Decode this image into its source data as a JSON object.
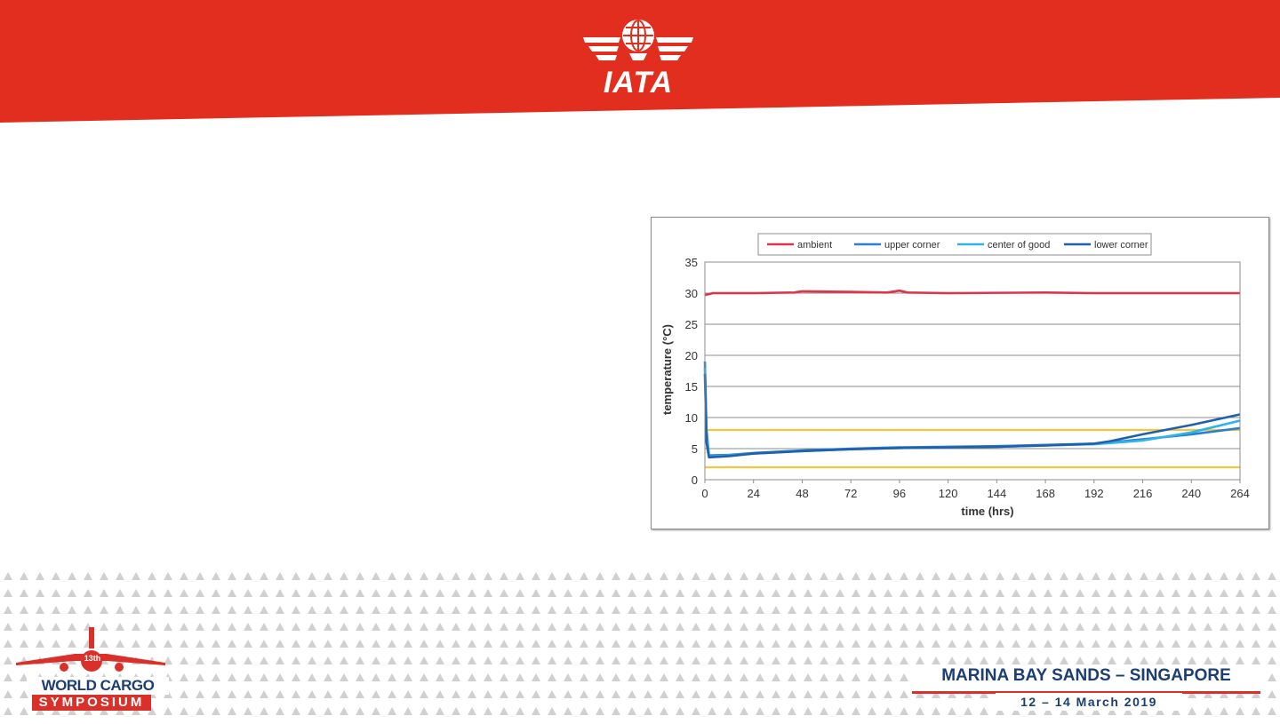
{
  "header": {
    "logo_text": "IATA",
    "brand_color": "#e22e1f",
    "logo_icon": "globe-wings-icon"
  },
  "footer": {
    "event_title": "WORLD CARGO",
    "event_subtitle": "SYMPOSIUM",
    "edition": "13th",
    "venue": "MARINA BAY SANDS – SINGAPORE",
    "dates": "12 – 14 March 2019",
    "text_color": "#1c3e73",
    "accent_color": "#d9312a"
  },
  "chart_data": {
    "type": "line",
    "title": "",
    "xlabel": "time (hrs)",
    "ylabel": "temperature (°C)",
    "xlim": [
      0,
      264
    ],
    "ylim": [
      0,
      35
    ],
    "xticks": [
      0,
      24,
      48,
      72,
      96,
      120,
      144,
      168,
      192,
      216,
      240,
      264
    ],
    "yticks": [
      0,
      5,
      10,
      15,
      20,
      25,
      30,
      35
    ],
    "grid": true,
    "legend_position": "top",
    "series": [
      {
        "name": "ambient",
        "color": "#e0334a",
        "x": [
          0,
          4,
          24,
          44,
          48,
          72,
          90,
          96,
          100,
          120,
          168,
          192,
          216,
          240,
          264
        ],
        "y": [
          29.7,
          30.0,
          30.0,
          30.1,
          30.3,
          30.2,
          30.1,
          30.4,
          30.1,
          30.0,
          30.1,
          30.0,
          30.0,
          30.0,
          30.0
        ]
      },
      {
        "name": "upper corner",
        "color": "#2a7fd0",
        "x": [
          0,
          0.8,
          2,
          12,
          24,
          48,
          72,
          96,
          120,
          144,
          168,
          192,
          200,
          216,
          240,
          264
        ],
        "y": [
          19,
          8,
          3.9,
          4.0,
          4.3,
          4.7,
          5.0,
          5.2,
          5.3,
          5.4,
          5.6,
          5.8,
          6.0,
          6.5,
          7.3,
          8.3
        ]
      },
      {
        "name": "center of good",
        "color": "#2fb3ea",
        "x": [
          0,
          0.8,
          2,
          12,
          24,
          48,
          72,
          96,
          120,
          144,
          168,
          192,
          200,
          216,
          240,
          264
        ],
        "y": [
          18,
          7,
          3.7,
          3.9,
          4.2,
          4.6,
          4.9,
          5.1,
          5.2,
          5.3,
          5.5,
          5.7,
          5.9,
          6.3,
          7.6,
          9.5
        ]
      },
      {
        "name": "lower corner",
        "color": "#1f5fae",
        "x": [
          0,
          0.8,
          2,
          12,
          24,
          48,
          72,
          96,
          120,
          144,
          168,
          192,
          200,
          216,
          240,
          264
        ],
        "y": [
          17,
          6,
          3.6,
          3.8,
          4.2,
          4.6,
          4.9,
          5.1,
          5.2,
          5.3,
          5.5,
          5.8,
          6.2,
          7.3,
          8.8,
          10.5
        ]
      }
    ],
    "reference_lines": [
      {
        "y": 8,
        "color": "#f4c642"
      },
      {
        "y": 2,
        "color": "#f4c642"
      }
    ]
  }
}
